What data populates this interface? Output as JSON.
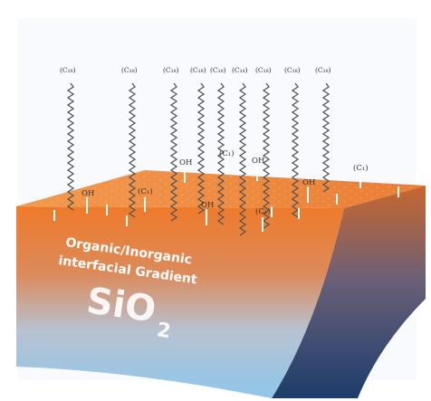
{
  "diagram": {
    "chain_labels": [
      "(C₁₈)",
      "(C₁₈)",
      "(C₁₈)",
      "(C₁₈)",
      "(C₁₈)",
      "(C₁₈)",
      "(C₁₈)",
      "(C₁₈)",
      "(C₁₈)"
    ],
    "short_chain_labels": [
      "(C₁)",
      "(C₁)",
      "(C₁)",
      "(C₁)"
    ],
    "hydroxyl_label": "OH",
    "surface_caption_line1": "Organic/Inorganic",
    "surface_caption_line2": "interfacial Gradient",
    "substrate_label_main": "SiO",
    "substrate_label_sub": "2",
    "colors": {
      "top_surface": "#f08a3c",
      "side_top": "#e8742a",
      "side_bottom": "#9ecbe8",
      "right_side_top": "#c86a3a",
      "right_side_bottom": "#1f3f6e",
      "chain": "#555555"
    }
  }
}
